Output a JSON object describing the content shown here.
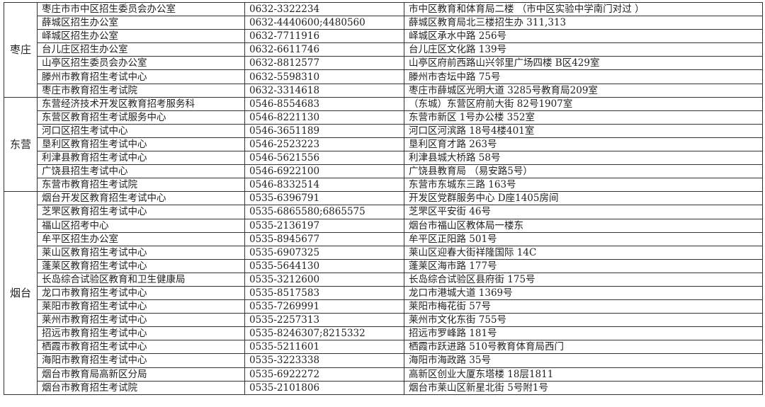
{
  "groups": [
    {
      "region": "枣庄",
      "rows": [
        [
          "枣庄市市中区招生委员会办公室",
          "0632-3322234",
          "市中区教育和体育局二楼 （市中区实验中学南门对过 ）"
        ],
        [
          "薛城区招生办公室",
          "0632-4440600;4480560",
          "薛城区教育局北三楼招生办 311,313"
        ],
        [
          "峄城区招生办公室",
          "0632-7711916",
          "峄城区承水中路 256号"
        ],
        [
          "台儿庄区招生办公室",
          "0632-6611746",
          "台儿庄区文化路 139号"
        ],
        [
          "山亭区招生委员会办公室",
          "0632-8812577",
          "山亭区府前西路山兴邻里广场四楼 B区429室"
        ],
        [
          "滕州市教育招生考试中心",
          "0632-5598310",
          "滕州市杏坛中路 75号"
        ],
        [
          "枣庄市教育招生考试院",
          "0632-3314618",
          "枣庄市薛城区光明大道 3285号教育局209室"
        ]
      ]
    },
    {
      "region": "东营",
      "rows": [
        [
          "东营经济技术开发区教育招考服务科",
          "0546-8554683",
          "（东城）东营区府前大街 82号1907室"
        ],
        [
          "东营区教育招生考试服务中心",
          "0546-8221130",
          "东营市新区 1号办公楼 352室"
        ],
        [
          "河口区招生考试中心",
          "0546-3651189",
          "河口区河滨路 18号4楼401室"
        ],
        [
          "垦利区教育招生考试中心",
          "0546-2523223",
          "垦利区育才路 263号"
        ],
        [
          "利津县教育招生考试中心",
          "0546-5621556",
          "利津县城大桥路 58号"
        ],
        [
          "广饶县招生考试中心",
          "0546-6922100",
          "广饶县教育局 （易安路5号）"
        ],
        [
          "东营市教育招生考试院",
          "0546-8332514",
          "东营市东城东三路 163号"
        ]
      ]
    },
    {
      "region": "烟台",
      "rows": [
        [
          "烟台开发区教育招生考试中心",
          "0535-6396791",
          "开发区党群服务中心 D座1405房间"
        ],
        [
          "芝罘区教育招生考试中心",
          "0535-6865580;6865575",
          "芝罘区平安街 46号"
        ],
        [
          "福山区招考中心",
          "0535-2136197",
          "烟台市福山区教体局一楼东"
        ],
        [
          "牟平区招生办公室",
          "0535-8945677",
          "牟平区正阳路 501号"
        ],
        [
          "莱山区教育招生考试中心",
          "0535-6907325",
          "莱山区迎春大街祥隆国际 14C"
        ],
        [
          "蓬莱区教育招生考试中心",
          "0535-5644130",
          "蓬莱区海市路 177号"
        ],
        [
          "长岛综合试验区教育和卫生健康局",
          "0535-3212600",
          "长岛综合试验区县府街 175号"
        ],
        [
          "龙口市教育招生考试中心",
          "0535-8517583",
          "龙口市港城大道 1369号"
        ],
        [
          "莱阳市教育招生考试中心",
          "0535-7269991",
          "莱阳市梅花街 57号"
        ],
        [
          "莱州市教育招生考试中心",
          "0535-2257313",
          "莱州市文化东街 755号"
        ],
        [
          "招远市教育招生考试中心",
          "0535-8246307;8215332",
          "招远市罗峰路 181号"
        ],
        [
          "栖霞市教育招生考试中心",
          "0535-5211601",
          "栖霞市跃进路 510号教育体育局西门"
        ],
        [
          "海阳市教育招生考试中心",
          "0535-3223338",
          "海阳市海政路 35号"
        ],
        [
          "烟台市教育局高新区分局",
          "0535-6922272",
          "高新区创业大厦东塔楼 18层1811"
        ],
        [
          "烟台市教育招生考试院",
          "0535-2101806",
          "烟台市莱山区新星北街 5号附1号"
        ]
      ]
    }
  ]
}
